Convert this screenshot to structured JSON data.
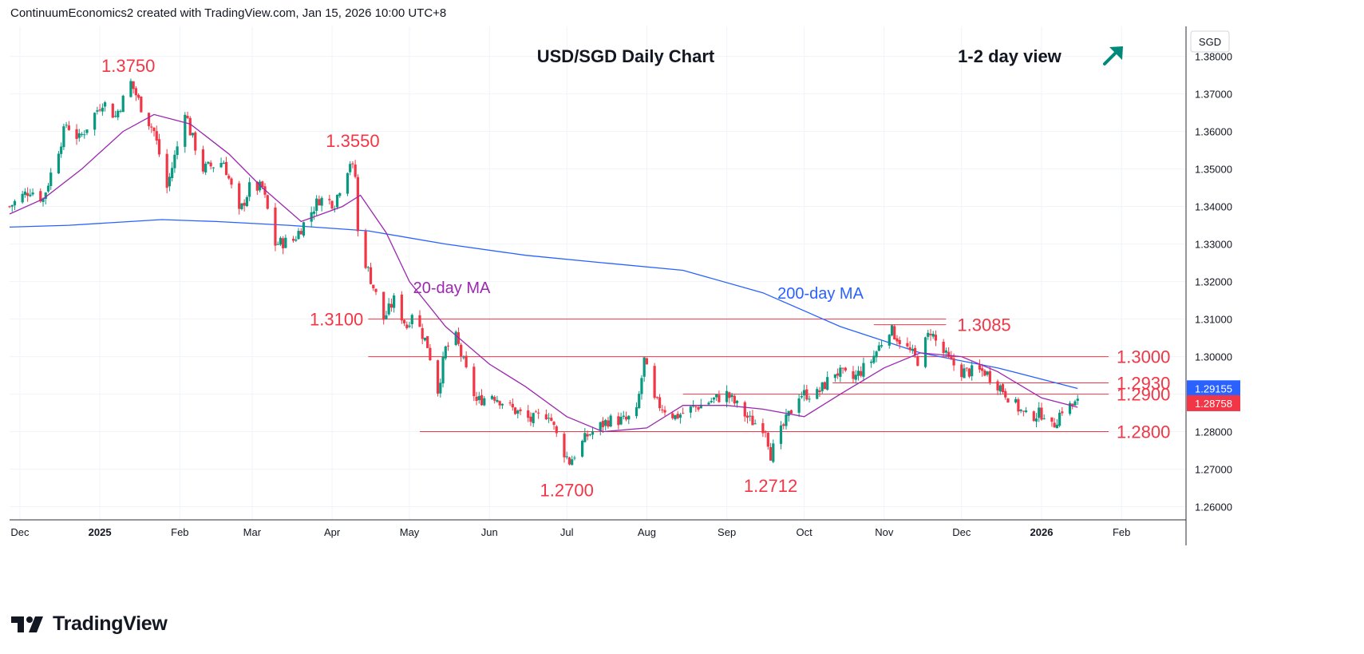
{
  "header": {
    "credit": "ContinuumEconomics2 created with TradingView.com, Jan 15, 2026 10:00 UTC+8"
  },
  "footer": {
    "brand": "TradingView"
  },
  "colors": {
    "up": "#089981",
    "down": "#f23645",
    "sma20": "#9c27b0",
    "sma200": "#2962ff",
    "level": "#f23645",
    "grid": "#f0f3fa"
  },
  "chart_data": {
    "type": "candlestick",
    "title": "USD/SGD Daily Chart",
    "view": "1-2 day view",
    "view_icon": "arrow-up-right-icon",
    "currency": "SGD",
    "ylim": [
      1.2565,
      1.388
    ],
    "y_ticks": [
      "1.38000",
      "1.37000",
      "1.36000",
      "1.35000",
      "1.34000",
      "1.33000",
      "1.32000",
      "1.31000",
      "1.30000",
      "1.29000",
      "1.28000",
      "1.27000",
      "1.26000"
    ],
    "x_range": [
      "2024-11-27",
      "2026-02-26"
    ],
    "x_ticks": [
      {
        "label": "Dec",
        "date": "2024-12-01",
        "bold": false
      },
      {
        "label": "2025",
        "date": "2025-01-01",
        "bold": true
      },
      {
        "label": "Feb",
        "date": "2025-02-01",
        "bold": false
      },
      {
        "label": "Mar",
        "date": "2025-03-01",
        "bold": false
      },
      {
        "label": "Apr",
        "date": "2025-04-01",
        "bold": false
      },
      {
        "label": "May",
        "date": "2025-05-01",
        "bold": false
      },
      {
        "label": "Jun",
        "date": "2025-06-01",
        "bold": false
      },
      {
        "label": "Jul",
        "date": "2025-07-01",
        "bold": false
      },
      {
        "label": "Aug",
        "date": "2025-08-01",
        "bold": false
      },
      {
        "label": "Sep",
        "date": "2025-09-01",
        "bold": false
      },
      {
        "label": "Oct",
        "date": "2025-10-01",
        "bold": false
      },
      {
        "label": "Nov",
        "date": "2025-11-01",
        "bold": false
      },
      {
        "label": "Dec",
        "date": "2025-12-01",
        "bold": false
      },
      {
        "label": "2026",
        "date": "2026-01-01",
        "bold": true
      },
      {
        "label": "Feb",
        "date": "2026-02-01",
        "bold": false
      }
    ],
    "close_path": [
      [
        "2024-11-27",
        1.34
      ],
      [
        "2024-12-05",
        1.3445
      ],
      [
        "2024-12-10",
        1.342
      ],
      [
        "2024-12-19",
        1.362
      ],
      [
        "2024-12-24",
        1.358
      ],
      [
        "2025-01-02",
        1.368
      ],
      [
        "2025-01-07",
        1.364
      ],
      [
        "2025-01-13",
        1.373
      ],
      [
        "2025-01-18",
        1.365
      ],
      [
        "2025-01-22",
        1.36
      ],
      [
        "2025-01-27",
        1.345
      ],
      [
        "2025-01-31",
        1.356
      ],
      [
        "2025-02-03",
        1.366
      ],
      [
        "2025-02-05",
        1.36
      ],
      [
        "2025-02-10",
        1.35
      ],
      [
        "2025-02-18",
        1.352
      ],
      [
        "2025-02-24",
        1.338
      ],
      [
        "2025-02-28",
        1.345
      ],
      [
        "2025-03-05",
        1.345
      ],
      [
        "2025-03-10",
        1.33
      ],
      [
        "2025-03-17",
        1.331
      ],
      [
        "2025-03-27",
        1.342
      ],
      [
        "2025-04-02",
        1.341
      ],
      [
        "2025-04-04",
        1.345
      ],
      [
        "2025-04-08",
        1.352
      ],
      [
        "2025-04-10",
        1.348
      ],
      [
        "2025-04-11",
        1.333
      ],
      [
        "2025-04-14",
        1.325
      ],
      [
        "2025-04-21",
        1.31
      ],
      [
        "2025-04-25",
        1.315
      ],
      [
        "2025-04-30",
        1.308
      ],
      [
        "2025-05-02",
        1.312
      ],
      [
        "2025-05-08",
        1.303
      ],
      [
        "2025-05-12",
        1.291
      ],
      [
        "2025-05-15",
        1.302
      ],
      [
        "2025-05-19",
        1.305
      ],
      [
        "2025-05-23",
        1.296
      ],
      [
        "2025-05-27",
        1.288
      ],
      [
        "2025-06-02",
        1.29
      ],
      [
        "2025-06-10",
        1.286
      ],
      [
        "2025-06-17",
        1.283
      ],
      [
        "2025-06-24",
        1.285
      ],
      [
        "2025-06-28",
        1.277
      ],
      [
        "2025-07-02",
        1.272
      ],
      [
        "2025-07-09",
        1.279
      ],
      [
        "2025-07-17",
        1.283
      ],
      [
        "2025-07-24",
        1.283
      ],
      [
        "2025-07-28",
        1.285
      ],
      [
        "2025-07-31",
        1.299
      ],
      [
        "2025-08-04",
        1.288
      ],
      [
        "2025-08-12",
        1.284
      ],
      [
        "2025-08-18",
        1.286
      ],
      [
        "2025-08-25",
        1.288
      ],
      [
        "2025-09-01",
        1.29
      ],
      [
        "2025-09-10",
        1.283
      ],
      [
        "2025-09-16",
        1.281
      ],
      [
        "2025-09-18",
        1.274
      ],
      [
        "2025-09-22",
        1.28
      ],
      [
        "2025-09-29",
        1.29
      ],
      [
        "2025-10-06",
        1.29
      ],
      [
        "2025-10-13",
        1.296
      ],
      [
        "2025-10-20",
        1.294
      ],
      [
        "2025-10-27",
        1.299
      ],
      [
        "2025-11-03",
        1.3075
      ],
      [
        "2025-11-10",
        1.302
      ],
      [
        "2025-11-14",
        1.299
      ],
      [
        "2025-11-19",
        1.307
      ],
      [
        "2025-11-21",
        1.304
      ],
      [
        "2025-11-26",
        1.299
      ],
      [
        "2025-12-01",
        1.296
      ],
      [
        "2025-12-10",
        1.296
      ],
      [
        "2025-12-16",
        1.292
      ],
      [
        "2025-12-22",
        1.287
      ],
      [
        "2025-12-26",
        1.284
      ],
      [
        "2026-01-02",
        1.285
      ],
      [
        "2026-01-05",
        1.281
      ],
      [
        "2026-01-09",
        1.286
      ],
      [
        "2026-01-15",
        1.2876
      ]
    ],
    "series": [
      {
        "name": "20-day MA",
        "points": [
          [
            "2024-11-27",
            1.338
          ],
          [
            "2024-12-10",
            1.342
          ],
          [
            "2024-12-25",
            1.35
          ],
          [
            "2025-01-10",
            1.36
          ],
          [
            "2025-01-22",
            1.3645
          ],
          [
            "2025-02-05",
            1.362
          ],
          [
            "2025-02-20",
            1.354
          ],
          [
            "2025-03-05",
            1.345
          ],
          [
            "2025-03-20",
            1.336
          ],
          [
            "2025-04-05",
            1.34
          ],
          [
            "2025-04-12",
            1.343
          ],
          [
            "2025-04-22",
            1.333
          ],
          [
            "2025-05-01",
            1.32
          ],
          [
            "2025-05-15",
            1.308
          ],
          [
            "2025-06-01",
            1.298
          ],
          [
            "2025-06-15",
            1.292
          ],
          [
            "2025-07-01",
            1.284
          ],
          [
            "2025-07-15",
            1.28
          ],
          [
            "2025-08-01",
            1.281
          ],
          [
            "2025-08-15",
            1.287
          ],
          [
            "2025-09-01",
            1.287
          ],
          [
            "2025-09-15",
            1.286
          ],
          [
            "2025-10-01",
            1.284
          ],
          [
            "2025-10-15",
            1.29
          ],
          [
            "2025-11-01",
            1.297
          ],
          [
            "2025-11-15",
            1.301
          ],
          [
            "2025-12-01",
            1.3
          ],
          [
            "2025-12-15",
            1.296
          ],
          [
            "2026-01-01",
            1.289
          ],
          [
            "2026-01-15",
            1.2865
          ]
        ]
      },
      {
        "name": "200-day MA",
        "points": [
          [
            "2024-11-27",
            1.3345
          ],
          [
            "2024-12-20",
            1.335
          ],
          [
            "2025-01-25",
            1.3365
          ],
          [
            "2025-02-15",
            1.336
          ],
          [
            "2025-03-15",
            1.335
          ],
          [
            "2025-04-15",
            1.3335
          ],
          [
            "2025-05-15",
            1.33
          ],
          [
            "2025-06-15",
            1.327
          ],
          [
            "2025-07-15",
            1.325
          ],
          [
            "2025-08-15",
            1.323
          ],
          [
            "2025-09-15",
            1.317
          ],
          [
            "2025-10-15",
            1.308
          ],
          [
            "2025-11-15",
            1.301
          ],
          [
            "2025-12-15",
            1.297
          ],
          [
            "2026-01-15",
            1.2915
          ]
        ]
      }
    ],
    "levels": [
      {
        "label": "1.3100",
        "value": 1.31,
        "from": "2025-04-15",
        "to": "2025-11-25",
        "label_side": "left"
      },
      {
        "label": "1.3085",
        "value": 1.3085,
        "from": "2025-10-28",
        "to": "2025-11-25",
        "label_side": "right"
      },
      {
        "label": "1.3000",
        "value": 1.3,
        "from": "2025-04-15",
        "to": "2026-01-27",
        "label_side": "right"
      },
      {
        "label": "1.2930",
        "value": 1.293,
        "from": "2025-10-12",
        "to": "2026-01-27",
        "label_side": "right"
      },
      {
        "label": "1.2900",
        "value": 1.29,
        "from": "2025-08-15",
        "to": "2026-01-27",
        "label_side": "right"
      },
      {
        "label": "1.2800",
        "value": 1.28,
        "from": "2025-05-05",
        "to": "2026-01-27",
        "label_side": "right"
      }
    ],
    "annotations": [
      {
        "text": "1.3750",
        "date": "2025-01-12",
        "value": 1.375
      },
      {
        "text": "1.3550",
        "date": "2025-04-09",
        "value": 1.355
      },
      {
        "text": "1.2700",
        "date": "2025-07-01",
        "value": 1.27
      },
      {
        "text": "1.2712",
        "date": "2025-09-18",
        "value": 1.2712
      }
    ],
    "ma_labels": [
      {
        "text": "20-day MA",
        "series": "20-day MA"
      },
      {
        "text": "200-day MA",
        "series": "200-day MA"
      }
    ],
    "price_labels": [
      {
        "text": "1.29155",
        "value": 1.29155,
        "color": "#2962ff"
      },
      {
        "text": "1.28758",
        "value": 1.28758,
        "color": "#f23645"
      }
    ],
    "grid": true
  }
}
